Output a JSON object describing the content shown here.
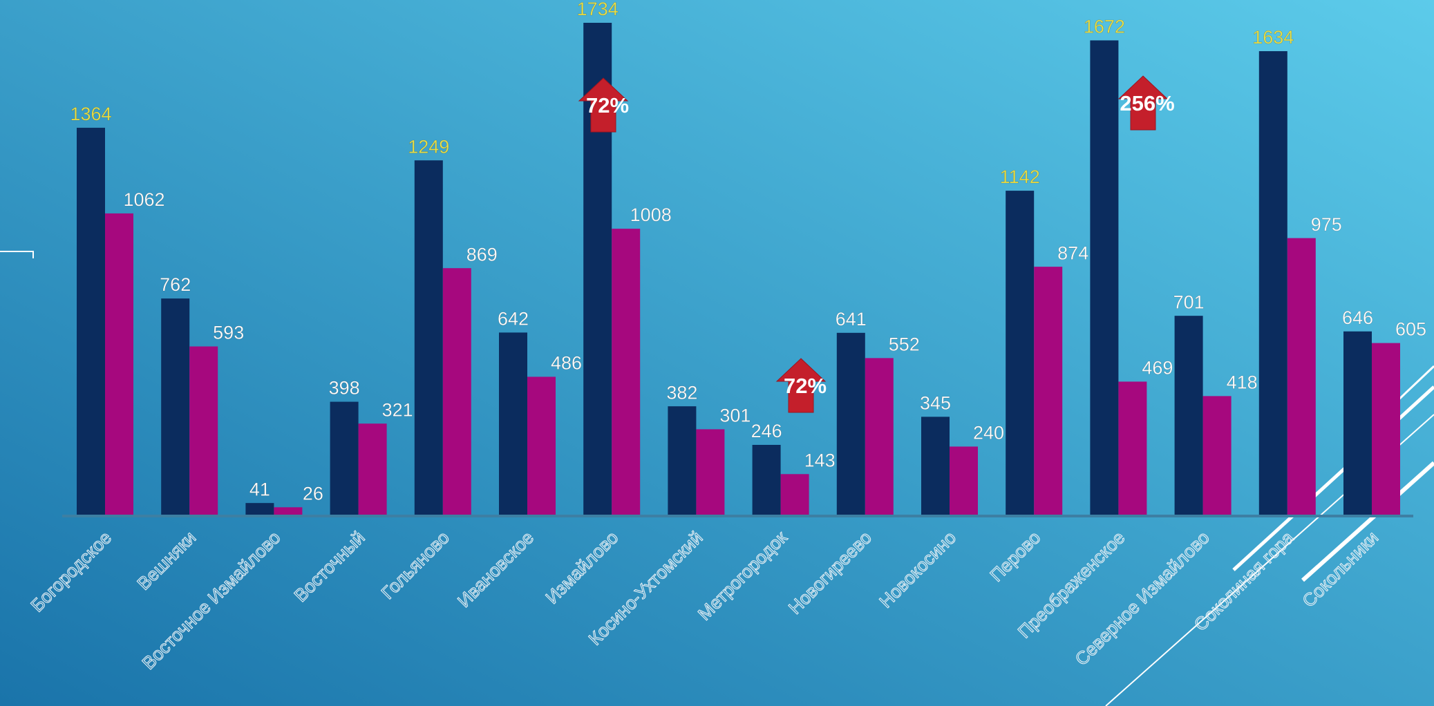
{
  "chart_data": {
    "type": "bar",
    "categories": [
      "Богородское",
      "Вешняки",
      "Восточное Измайлово",
      "Восточный",
      "Гольяново",
      "Ивановское",
      "Измайлово",
      "Косино-Ухтомский",
      "Метрогородок",
      "Новогиреево",
      "Новокосино",
      "Перово",
      "Преображенское",
      "Северное Измайлово",
      "Соколиная гора",
      "Сокольники"
    ],
    "series": [
      {
        "color": "#0b2c5e",
        "values": [
          1364,
          762,
          41,
          398,
          1249,
          642,
          1734,
          382,
          246,
          641,
          345,
          1142,
          1672,
          701,
          1634,
          646
        ],
        "label_colors": [
          "#e8e04a",
          "#ffffff",
          "#ffffff",
          "#ffffff",
          "#e8e04a",
          "#ffffff",
          "#e8e04a",
          "#ffffff",
          "#ffffff",
          "#ffffff",
          "#ffffff",
          "#e8e04a",
          "#e8e04a",
          "#ffffff",
          "#e8e04a",
          "#ffffff"
        ]
      },
      {
        "color": "#a6087e",
        "values": [
          1062,
          593,
          26,
          321,
          869,
          486,
          1008,
          301,
          143,
          552,
          240,
          874,
          469,
          418,
          975,
          605
        ],
        "label_color": "#ffffff"
      }
    ],
    "annotations": [
      "72%",
      "72%",
      "256%"
    ],
    "annotation_color": "#c41f2b"
  }
}
